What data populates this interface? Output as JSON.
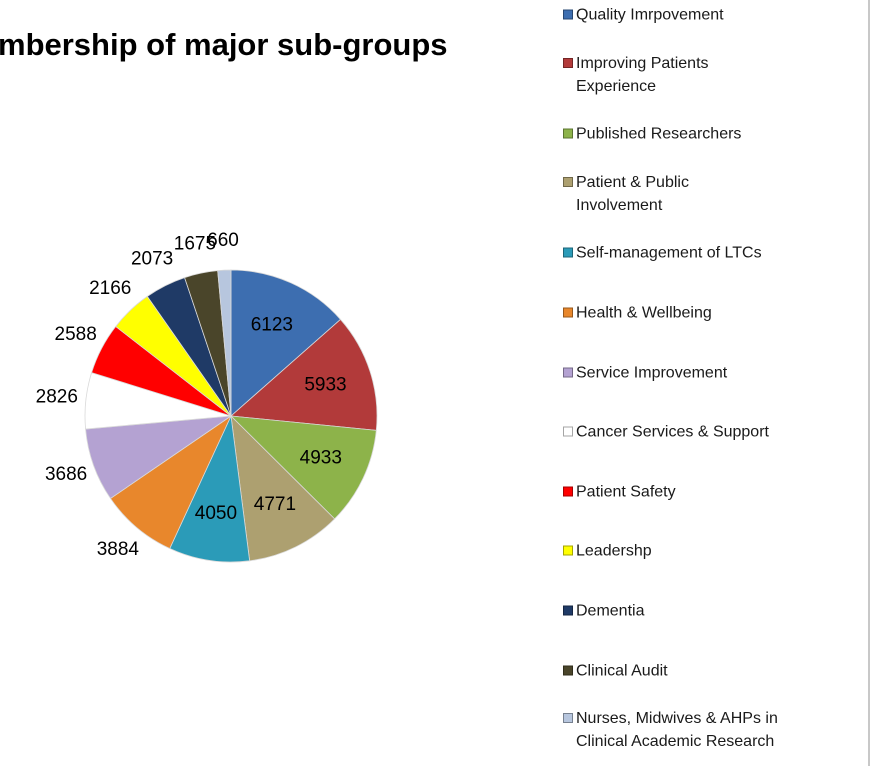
{
  "chart_data": {
    "type": "pie",
    "title": "mbership of major sub-groups",
    "categories": [
      "Quality Imrpovement",
      "Improving Patients\nExperience",
      "Published Researchers",
      "Patient & Public\nInvolvement",
      "Self-management of LTCs",
      "Health & Wellbeing",
      "Service Improvement",
      "Cancer Services & Support",
      "Patient Safety",
      "Leadershp",
      "Dementia",
      "Clinical Audit",
      "Nurses, Midwives & AHPs in\nClinical Academic Research"
    ],
    "values": [
      6123,
      5933,
      4933,
      4771,
      4050,
      3884,
      3686,
      2826,
      2588,
      2166,
      2073,
      1675,
      660
    ],
    "colors": [
      "#3d6eb0",
      "#b23a3a",
      "#8db34a",
      "#ada070",
      "#2b9bb8",
      "#e8872c",
      "#b4a2d2",
      "#ffffff",
      "#ff0000",
      "#ffff00",
      "#1f3a66",
      "#4a452a",
      "#b7c6de"
    ],
    "legend": "right"
  }
}
